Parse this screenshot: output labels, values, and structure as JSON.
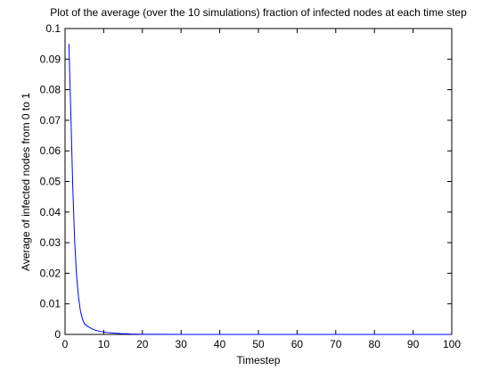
{
  "chart_data": {
    "type": "line",
    "title": "Plot of the average (over the 10 simulations) fraction of infected nodes at each time step",
    "xlabel": "Timestep",
    "ylabel": "Average of infected nodes from 0 to 1",
    "xlim": [
      0,
      100
    ],
    "ylim": [
      0,
      0.1
    ],
    "xticks": [
      "0",
      "10",
      "20",
      "30",
      "40",
      "50",
      "60",
      "70",
      "80",
      "90",
      "100"
    ],
    "yticks": [
      "0",
      "0.01",
      "0.02",
      "0.03",
      "0.04",
      "0.05",
      "0.06",
      "0.07",
      "0.08",
      "0.09",
      "0.1"
    ],
    "grid": false,
    "series": [
      {
        "color": "#0000ff",
        "x": [
          1,
          1.5,
          2,
          2.5,
          3,
          3.5,
          4,
          4.5,
          5,
          6,
          7,
          8,
          9,
          10,
          11,
          12,
          13,
          14,
          15,
          16,
          17,
          18,
          20,
          25,
          30,
          40,
          50,
          60,
          70,
          80,
          90,
          100
        ],
        "y": [
          0.095,
          0.072,
          0.048,
          0.03,
          0.019,
          0.012,
          0.0075,
          0.005,
          0.0035,
          0.0025,
          0.0018,
          0.0013,
          0.001,
          0.0008,
          0.0006,
          0.0005,
          0.0004,
          0.0003,
          0.0002,
          0.0002,
          0.0001,
          0.0001,
          5e-05,
          2e-05,
          1e-05,
          0,
          0,
          0,
          0,
          0,
          0,
          0
        ]
      }
    ]
  }
}
